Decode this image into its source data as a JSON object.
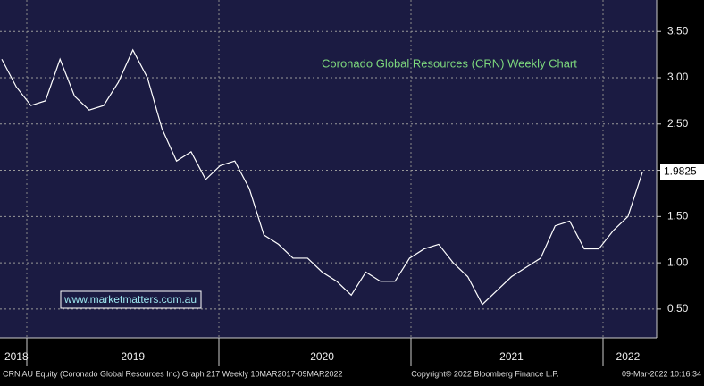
{
  "chart_data": {
    "type": "line",
    "title": "Coronado Global Resources (CRN) Weekly Chart",
    "categories": [
      null,
      "2018",
      null,
      null,
      null,
      null,
      null,
      null,
      null,
      "2019",
      null,
      null,
      null,
      null,
      null,
      null,
      null,
      null,
      null,
      null,
      null,
      null,
      "2020",
      null,
      null,
      null,
      null,
      null,
      null,
      null,
      null,
      null,
      null,
      null,
      null,
      "2021",
      null,
      null,
      null,
      null,
      null,
      null,
      null,
      "2022",
      null
    ],
    "values": [
      3.2,
      2.9,
      2.7,
      2.75,
      3.2,
      2.8,
      2.65,
      2.7,
      2.95,
      3.3,
      3.0,
      2.45,
      2.1,
      2.2,
      1.9,
      2.05,
      2.1,
      1.8,
      1.3,
      1.2,
      1.05,
      1.05,
      0.9,
      0.8,
      0.65,
      0.9,
      0.8,
      0.8,
      1.05,
      1.15,
      1.2,
      1.0,
      0.85,
      0.55,
      0.7,
      0.85,
      0.95,
      1.05,
      1.4,
      1.45,
      1.15,
      1.15,
      1.35,
      1.5,
      1.9825
    ],
    "color": "#ffffff",
    "ylim": [
      0.19,
      3.84
    ],
    "yticks": [
      {
        "value": 0.5,
        "label": "0.50"
      },
      {
        "value": 1.0,
        "label": "1.00"
      },
      {
        "value": 1.5,
        "label": "1.50"
      },
      {
        "value": 2.0,
        "label": "2.00"
      },
      {
        "value": 2.5,
        "label": "2.50"
      },
      {
        "value": 3.0,
        "label": "3.00"
      },
      {
        "value": 3.5,
        "label": "3.50"
      }
    ],
    "grid": true
  },
  "watermark": "www.marketmatters.com.au",
  "footer": {
    "left": "CRN AU Equity (Coronado Global Resources Inc) Graph 217  Weekly 10MAR2017-09MAR2022",
    "center": "Copyright© 2022 Bloomberg Finance L.P.",
    "right": "09-Mar-2022 10:16:34"
  }
}
